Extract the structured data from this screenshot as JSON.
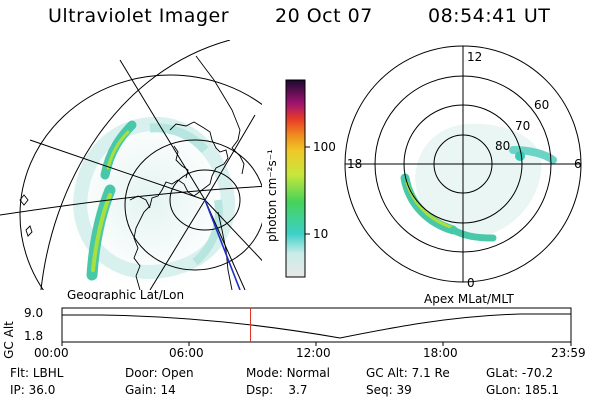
{
  "header": {
    "title": "Ultraviolet Imager",
    "date": "20 Oct 07",
    "time": "08:54:41 UT"
  },
  "left_panel": {
    "caption": "Geographic Lat/Lon"
  },
  "right_panel": {
    "caption": "Apex MLat/MLT",
    "mlt_labels": {
      "top": "12",
      "left": "18",
      "right": "6",
      "bottom": "0"
    },
    "lat_labels": [
      "60",
      "70",
      "80"
    ]
  },
  "colorbar": {
    "unit_label": "photon cm⁻²s⁻¹",
    "ticks": [
      "100",
      "10"
    ],
    "colors": [
      "#e8e8e8",
      "#3cd0c8",
      "#46d25a",
      "#c8e63c",
      "#f0c828",
      "#e83c28",
      "#a01470",
      "#1a0a30"
    ]
  },
  "timeline": {
    "ylabel": "GC Alt",
    "y_ticks": [
      "9.0",
      "1.8"
    ],
    "x_ticks": [
      "00:00",
      "06:00",
      "12:00",
      "18:00",
      "23:59"
    ],
    "current_time_fraction": 0.3704,
    "marker_color": "#e03020"
  },
  "info": {
    "row1": [
      {
        "label": "Flt:",
        "value": "LBHL"
      },
      {
        "label": "Door:",
        "value": "Open"
      },
      {
        "label": "Mode:",
        "value": "Normal"
      },
      {
        "label": "GC Alt:",
        "value": "7.1 Re"
      },
      {
        "label": "GLat:",
        "value": "-70.2"
      }
    ],
    "row2": [
      {
        "label": "IP:",
        "value": "36.0"
      },
      {
        "label": "Gain:",
        "value": "14"
      },
      {
        "label": "Dsp:",
        "value": "3.7"
      },
      {
        "label": "Seq:",
        "value": "39"
      },
      {
        "label": "GLon:",
        "value": "185.1"
      }
    ]
  }
}
